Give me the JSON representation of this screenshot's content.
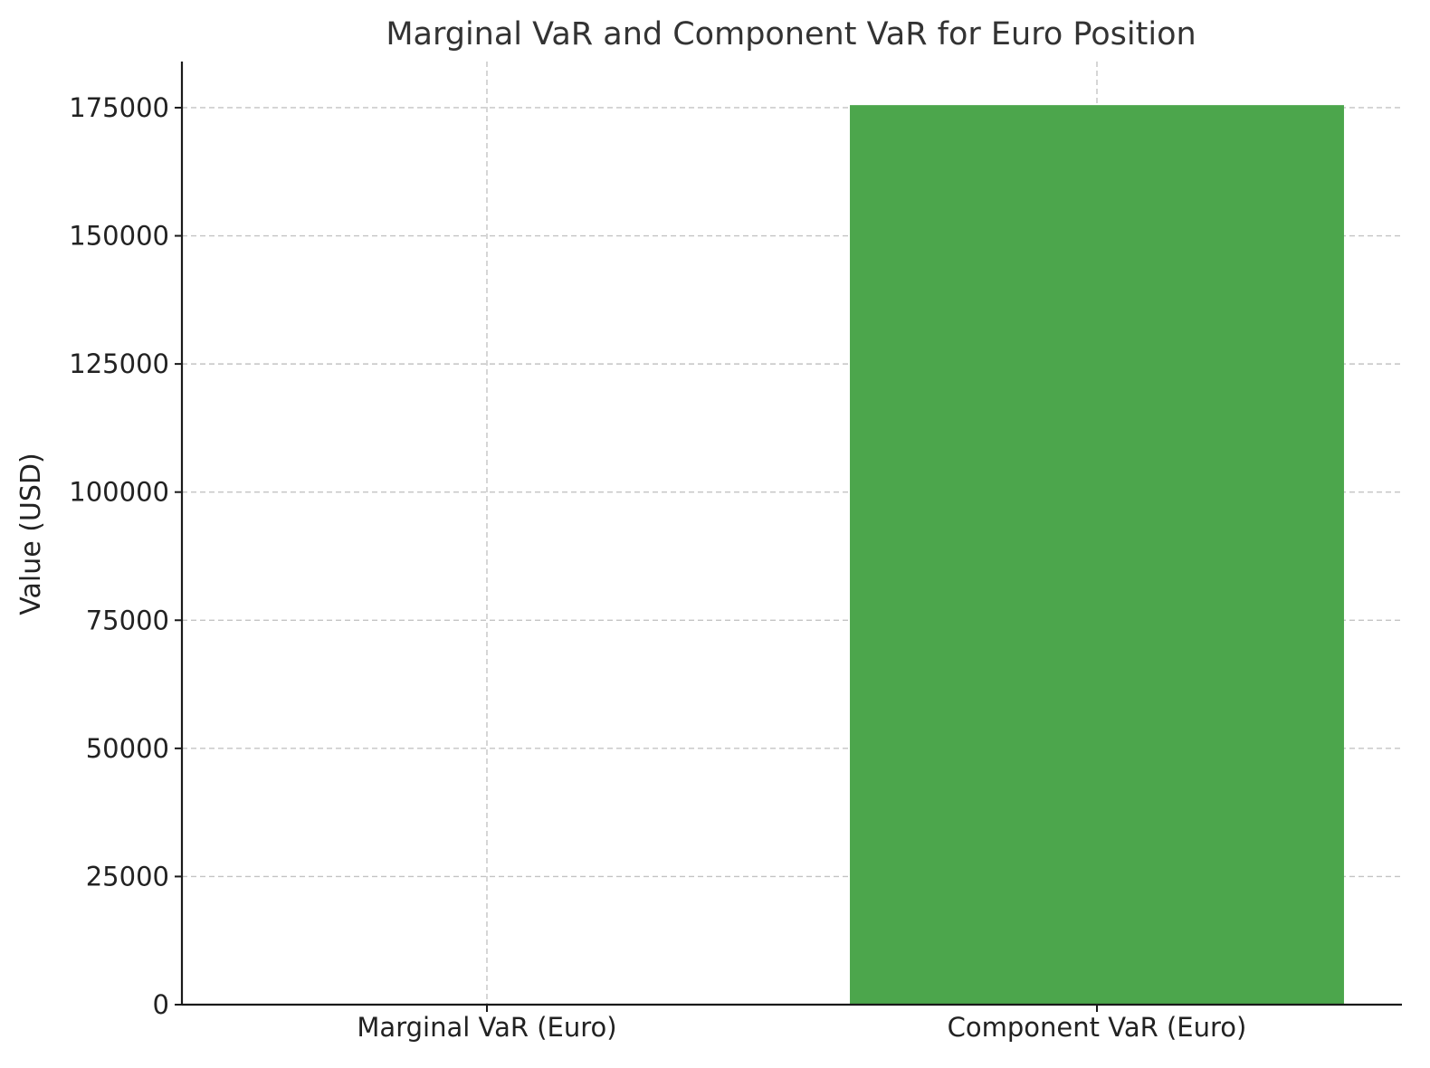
{
  "chart_data": {
    "type": "bar",
    "title": "Marginal VaR and Component VaR for Euro Position",
    "xlabel": "",
    "ylabel": "Value (USD)",
    "categories": [
      "Marginal VaR (Euro)",
      "Component VaR (Euro)"
    ],
    "values": [
      0.45,
      175500
    ],
    "ylim": [
      0,
      184000
    ],
    "yticks": [
      0,
      25000,
      50000,
      75000,
      100000,
      125000,
      150000,
      175000
    ],
    "bar_colors": [
      "#1f77b4",
      "#4ca64c"
    ],
    "grid": true,
    "legend": "none"
  }
}
